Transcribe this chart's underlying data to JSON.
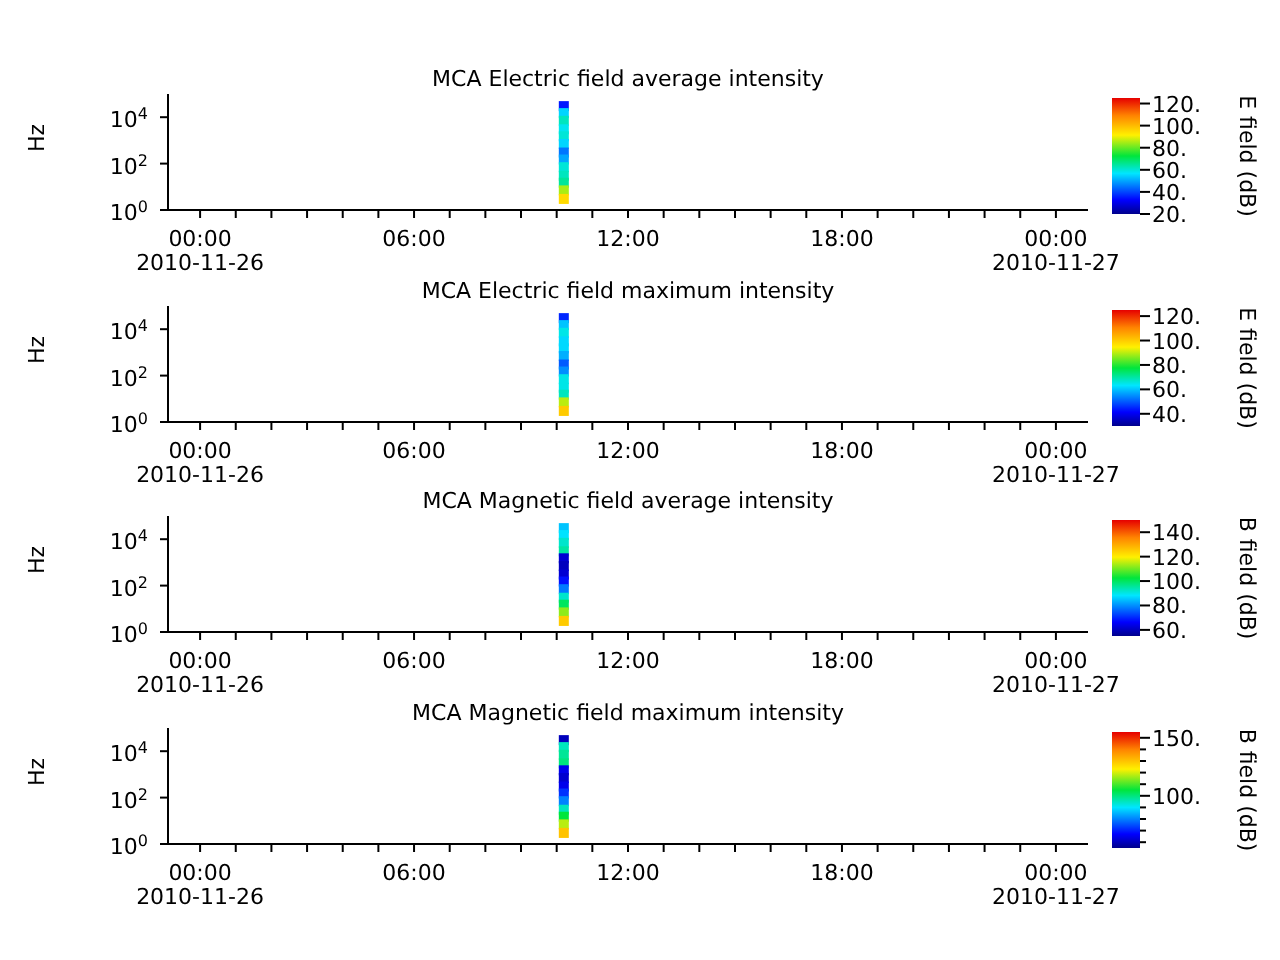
{
  "chart_data": [
    {
      "type": "scatter",
      "title": "MCA  Electric field average intensity",
      "ylabel": "Hz",
      "clabel": "E field (dB)",
      "marker": "square",
      "log": "y",
      "x": [
        "2010-11-26T10:12",
        "2010-11-26T10:12",
        "2010-11-26T10:12",
        "2010-11-26T10:12",
        "2010-11-26T10:12",
        "2010-11-26T10:12",
        "2010-11-26T10:12",
        "2010-11-26T10:12",
        "2010-11-26T10:12",
        "2010-11-26T10:12",
        "2010-11-26T10:12",
        "2010-11-26T10:12",
        "2010-11-26T10:12"
      ],
      "values": [
        30000,
        15000,
        7000,
        3000,
        1500,
        700,
        300,
        150,
        70,
        30,
        15,
        7,
        3
      ],
      "cvalues": [
        35,
        55,
        62,
        58,
        60,
        55,
        45,
        50,
        60,
        62,
        65,
        85,
        95
      ],
      "xlim": [
        "2010-11-25T23:06",
        "2010-11-27T00:54"
      ],
      "xticks": [
        {
          "value": "2010-11-26T00:00",
          "label": "00:00\n2010-11-26"
        },
        {
          "value": "2010-11-26T01:00",
          "label": null
        },
        {
          "value": "2010-11-26T02:00",
          "label": null
        },
        {
          "value": "2010-11-26T03:00",
          "label": null
        },
        {
          "value": "2010-11-26T04:00",
          "label": null
        },
        {
          "value": "2010-11-26T05:00",
          "label": null
        },
        {
          "value": "2010-11-26T06:00",
          "label": "06:00"
        },
        {
          "value": "2010-11-26T07:00",
          "label": null
        },
        {
          "value": "2010-11-26T08:00",
          "label": null
        },
        {
          "value": "2010-11-26T09:00",
          "label": null
        },
        {
          "value": "2010-11-26T10:00",
          "label": null
        },
        {
          "value": "2010-11-26T11:00",
          "label": null
        },
        {
          "value": "2010-11-26T12:00",
          "label": "12:00"
        },
        {
          "value": "2010-11-26T13:00",
          "label": null
        },
        {
          "value": "2010-11-26T14:00",
          "label": null
        },
        {
          "value": "2010-11-26T15:00",
          "label": null
        },
        {
          "value": "2010-11-26T16:00",
          "label": null
        },
        {
          "value": "2010-11-26T17:00",
          "label": null
        },
        {
          "value": "2010-11-26T18:00",
          "label": "18:00"
        },
        {
          "value": "2010-11-26T19:00",
          "label": null
        },
        {
          "value": "2010-11-26T20:00",
          "label": null
        },
        {
          "value": "2010-11-26T21:00",
          "label": null
        },
        {
          "value": "2010-11-26T22:00",
          "label": null
        },
        {
          "value": "2010-11-26T23:00",
          "label": null
        },
        {
          "value": "2010-11-27T00:00",
          "label": "00:00\n2010-11-27"
        }
      ],
      "ylim": [
        1,
        100000
      ],
      "yticks": [
        {
          "value": 1,
          "label": "10$^{0}$"
        },
        {
          "value": 100,
          "label": "10$^{2}$"
        },
        {
          "value": 10000,
          "label": "10$^{4}$"
        }
      ],
      "clim": [
        20,
        125
      ],
      "cticks": [
        {
          "value": 20,
          "label": "20."
        },
        {
          "value": 40,
          "label": "40."
        },
        {
          "value": 60,
          "label": "60."
        },
        {
          "value": 80,
          "label": "80."
        },
        {
          "value": 100,
          "label": "100."
        },
        {
          "value": 120,
          "label": "120."
        }
      ]
    },
    {
      "type": "scatter",
      "title": "MCA  Electric field maximum intensity",
      "ylabel": "Hz",
      "clabel": "E field (dB)",
      "marker": "square",
      "log": "y",
      "x": [
        "2010-11-26T10:12",
        "2010-11-26T10:12",
        "2010-11-26T10:12",
        "2010-11-26T10:12",
        "2010-11-26T10:12",
        "2010-11-26T10:12",
        "2010-11-26T10:12",
        "2010-11-26T10:12",
        "2010-11-26T10:12",
        "2010-11-26T10:12",
        "2010-11-26T10:12",
        "2010-11-26T10:12",
        "2010-11-26T10:12"
      ],
      "values": [
        30000,
        15000,
        7000,
        3000,
        1500,
        700,
        300,
        150,
        70,
        30,
        15,
        7,
        3
      ],
      "cvalues": [
        45,
        60,
        65,
        62,
        62,
        58,
        50,
        55,
        65,
        65,
        68,
        90,
        100
      ],
      "xlim": [
        "2010-11-25T23:06",
        "2010-11-27T00:54"
      ],
      "xticks": [
        {
          "value": "2010-11-26T00:00",
          "label": "00:00\n2010-11-26"
        },
        {
          "value": "2010-11-26T01:00",
          "label": null
        },
        {
          "value": "2010-11-26T02:00",
          "label": null
        },
        {
          "value": "2010-11-26T03:00",
          "label": null
        },
        {
          "value": "2010-11-26T04:00",
          "label": null
        },
        {
          "value": "2010-11-26T05:00",
          "label": null
        },
        {
          "value": "2010-11-26T06:00",
          "label": "06:00"
        },
        {
          "value": "2010-11-26T07:00",
          "label": null
        },
        {
          "value": "2010-11-26T08:00",
          "label": null
        },
        {
          "value": "2010-11-26T09:00",
          "label": null
        },
        {
          "value": "2010-11-26T10:00",
          "label": null
        },
        {
          "value": "2010-11-26T11:00",
          "label": null
        },
        {
          "value": "2010-11-26T12:00",
          "label": "12:00"
        },
        {
          "value": "2010-11-26T13:00",
          "label": null
        },
        {
          "value": "2010-11-26T14:00",
          "label": null
        },
        {
          "value": "2010-11-26T15:00",
          "label": null
        },
        {
          "value": "2010-11-26T16:00",
          "label": null
        },
        {
          "value": "2010-11-26T17:00",
          "label": null
        },
        {
          "value": "2010-11-26T18:00",
          "label": "18:00"
        },
        {
          "value": "2010-11-26T19:00",
          "label": null
        },
        {
          "value": "2010-11-26T20:00",
          "label": null
        },
        {
          "value": "2010-11-26T21:00",
          "label": null
        },
        {
          "value": "2010-11-26T22:00",
          "label": null
        },
        {
          "value": "2010-11-26T23:00",
          "label": null
        },
        {
          "value": "2010-11-27T00:00",
          "label": "00:00\n2010-11-27"
        }
      ],
      "ylim": [
        1,
        100000
      ],
      "yticks": [
        {
          "value": 1,
          "label": "10$^{0}$"
        },
        {
          "value": 100,
          "label": "10$^{2}$"
        },
        {
          "value": 10000,
          "label": "10$^{4}$"
        }
      ],
      "clim": [
        30,
        125
      ],
      "cticks": [
        {
          "value": 40,
          "label": "40."
        },
        {
          "value": 60,
          "label": "60."
        },
        {
          "value": 80,
          "label": "80."
        },
        {
          "value": 100,
          "label": "100."
        },
        {
          "value": 120,
          "label": "120."
        }
      ]
    },
    {
      "type": "scatter",
      "title": "MCA  Magnetic field average intensity",
      "ylabel": "Hz",
      "clabel": "B field (dB)",
      "marker": "square",
      "log": "y",
      "x": [
        "2010-11-26T10:12",
        "2010-11-26T10:12",
        "2010-11-26T10:12",
        "2010-11-26T10:12",
        "2010-11-26T10:12",
        "2010-11-26T10:12",
        "2010-11-26T10:12",
        "2010-11-26T10:12",
        "2010-11-26T10:12",
        "2010-11-26T10:12",
        "2010-11-26T10:12",
        "2010-11-26T10:12",
        "2010-11-26T10:12"
      ],
      "values": [
        30000,
        15000,
        7000,
        3000,
        1500,
        700,
        300,
        150,
        70,
        30,
        15,
        7,
        3
      ],
      "cvalues": [
        85,
        88,
        92,
        95,
        62,
        60,
        62,
        68,
        78,
        92,
        100,
        112,
        125
      ],
      "xlim": [
        "2010-11-25T23:06",
        "2010-11-27T00:54"
      ],
      "xticks": [
        {
          "value": "2010-11-26T00:00",
          "label": "00:00\n2010-11-26"
        },
        {
          "value": "2010-11-26T01:00",
          "label": null
        },
        {
          "value": "2010-11-26T02:00",
          "label": null
        },
        {
          "value": "2010-11-26T03:00",
          "label": null
        },
        {
          "value": "2010-11-26T04:00",
          "label": null
        },
        {
          "value": "2010-11-26T05:00",
          "label": null
        },
        {
          "value": "2010-11-26T06:00",
          "label": "06:00"
        },
        {
          "value": "2010-11-26T07:00",
          "label": null
        },
        {
          "value": "2010-11-26T08:00",
          "label": null
        },
        {
          "value": "2010-11-26T09:00",
          "label": null
        },
        {
          "value": "2010-11-26T10:00",
          "label": null
        },
        {
          "value": "2010-11-26T11:00",
          "label": null
        },
        {
          "value": "2010-11-26T12:00",
          "label": "12:00"
        },
        {
          "value": "2010-11-26T13:00",
          "label": null
        },
        {
          "value": "2010-11-26T14:00",
          "label": null
        },
        {
          "value": "2010-11-26T15:00",
          "label": null
        },
        {
          "value": "2010-11-26T16:00",
          "label": null
        },
        {
          "value": "2010-11-26T17:00",
          "label": null
        },
        {
          "value": "2010-11-26T18:00",
          "label": "18:00"
        },
        {
          "value": "2010-11-26T19:00",
          "label": null
        },
        {
          "value": "2010-11-26T20:00",
          "label": null
        },
        {
          "value": "2010-11-26T21:00",
          "label": null
        },
        {
          "value": "2010-11-26T22:00",
          "label": null
        },
        {
          "value": "2010-11-26T23:00",
          "label": null
        },
        {
          "value": "2010-11-27T00:00",
          "label": "00:00\n2010-11-27"
        }
      ],
      "ylim": [
        1,
        100000
      ],
      "yticks": [
        {
          "value": 1,
          "label": "10$^{0}$"
        },
        {
          "value": 100,
          "label": "10$^{2}$"
        },
        {
          "value": 10000,
          "label": "10$^{4}$"
        }
      ],
      "clim": [
        55,
        150
      ],
      "cticks": [
        {
          "value": 60,
          "label": "60."
        },
        {
          "value": 80,
          "label": "80."
        },
        {
          "value": 100,
          "label": "100."
        },
        {
          "value": 120,
          "label": "120."
        },
        {
          "value": 140,
          "label": "140."
        }
      ]
    },
    {
      "type": "scatter",
      "title": "MCA  Magnetic field maximum intensity",
      "ylabel": "Hz",
      "clabel": "B field (dB)",
      "marker": "square",
      "log": "y",
      "x": [
        "2010-11-26T10:12",
        "2010-11-26T10:12",
        "2010-11-26T10:12",
        "2010-11-26T10:12",
        "2010-11-26T10:12",
        "2010-11-26T10:12",
        "2010-11-26T10:12",
        "2010-11-26T10:12",
        "2010-11-26T10:12",
        "2010-11-26T10:12",
        "2010-11-26T10:12",
        "2010-11-26T10:12",
        "2010-11-26T10:12"
      ],
      "values": [
        30000,
        15000,
        7000,
        3000,
        1500,
        700,
        300,
        150,
        70,
        30,
        15,
        7,
        3
      ],
      "cvalues": [
        60,
        95,
        98,
        100,
        65,
        62,
        65,
        72,
        80,
        95,
        105,
        118,
        130
      ],
      "xlim": [
        "2010-11-25T23:06",
        "2010-11-27T00:54"
      ],
      "xticks": [
        {
          "value": "2010-11-26T00:00",
          "label": "00:00\n2010-11-26"
        },
        {
          "value": "2010-11-26T01:00",
          "label": null
        },
        {
          "value": "2010-11-26T02:00",
          "label": null
        },
        {
          "value": "2010-11-26T03:00",
          "label": null
        },
        {
          "value": "2010-11-26T04:00",
          "label": null
        },
        {
          "value": "2010-11-26T05:00",
          "label": null
        },
        {
          "value": "2010-11-26T06:00",
          "label": "06:00"
        },
        {
          "value": "2010-11-26T07:00",
          "label": null
        },
        {
          "value": "2010-11-26T08:00",
          "label": null
        },
        {
          "value": "2010-11-26T09:00",
          "label": null
        },
        {
          "value": "2010-11-26T10:00",
          "label": null
        },
        {
          "value": "2010-11-26T11:00",
          "label": null
        },
        {
          "value": "2010-11-26T12:00",
          "label": "12:00"
        },
        {
          "value": "2010-11-26T13:00",
          "label": null
        },
        {
          "value": "2010-11-26T14:00",
          "label": null
        },
        {
          "value": "2010-11-26T15:00",
          "label": null
        },
        {
          "value": "2010-11-26T16:00",
          "label": null
        },
        {
          "value": "2010-11-26T17:00",
          "label": null
        },
        {
          "value": "2010-11-26T18:00",
          "label": "18:00"
        },
        {
          "value": "2010-11-26T19:00",
          "label": null
        },
        {
          "value": "2010-11-26T20:00",
          "label": null
        },
        {
          "value": "2010-11-26T21:00",
          "label": null
        },
        {
          "value": "2010-11-26T22:00",
          "label": null
        },
        {
          "value": "2010-11-26T23:00",
          "label": null
        },
        {
          "value": "2010-11-27T00:00",
          "label": "00:00\n2010-11-27"
        }
      ],
      "ylim": [
        1,
        100000
      ],
      "yticks": [
        {
          "value": 1,
          "label": "10$^{0}$"
        },
        {
          "value": 100,
          "label": "10$^{2}$"
        },
        {
          "value": 10000,
          "label": "10$^{4}$"
        }
      ],
      "clim": [
        55,
        155
      ],
      "cticks": [
        {
          "value": 60,
          "label": null
        },
        {
          "value": 70,
          "label": null
        },
        {
          "value": 80,
          "label": null
        },
        {
          "value": 90,
          "label": null
        },
        {
          "value": 100,
          "label": "100."
        },
        {
          "value": 110,
          "label": null
        },
        {
          "value": 120,
          "label": null
        },
        {
          "value": 130,
          "label": null
        },
        {
          "value": 140,
          "label": null
        },
        {
          "value": 150,
          "label": "150."
        }
      ]
    }
  ]
}
